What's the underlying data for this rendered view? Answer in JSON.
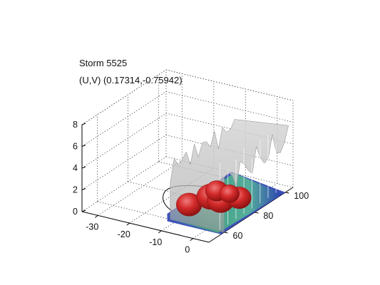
{
  "chart_data": {
    "type": "surface3d",
    "title": "Storm 5525",
    "subtitle": "(U,V) (0.17314,-0.75942)",
    "xlabel": "",
    "ylabel": "",
    "zlabel": "",
    "x_ticks": [
      -30,
      -20,
      -10,
      0
    ],
    "y_ticks": [
      60,
      80,
      100
    ],
    "z_ticks": [
      0,
      2,
      4,
      6,
      8
    ],
    "xlim": [
      -35,
      5
    ],
    "ylim": [
      50,
      105
    ],
    "zlim": [
      0,
      8
    ],
    "grid": true,
    "layers": [
      {
        "name": "",
        "color": "#a8a8a8",
        "shape": "tall translucent gray isosurface",
        "x_range": [
          -12,
          5
        ],
        "y_range": [
          60,
          102
        ],
        "z_range": [
          0,
          6.1
        ]
      },
      {
        "name": "",
        "color": "#cc2222",
        "shape": "red core blobs",
        "x_range": [
          -10,
          3
        ],
        "y_range": [
          58,
          82
        ],
        "z_range": [
          0,
          2.3
        ]
      },
      {
        "name": "",
        "color": "#3a9f7a",
        "shape": "teal/green base",
        "x_range": [
          -12,
          5
        ],
        "y_range": [
          58,
          100
        ],
        "z_range": [
          0,
          0.7
        ]
      },
      {
        "name": "",
        "color": "#2a3fb0",
        "shape": "blue edge",
        "x_range": [
          -12,
          5
        ],
        "y_range": [
          58,
          100
        ],
        "z_range": [
          0,
          0.4
        ]
      }
    ],
    "track": {
      "color": "#000000",
      "description": "storm track curve near base",
      "x": [
        -1,
        -12,
        -25,
        -20,
        -8,
        -2
      ],
      "y": [
        95,
        92,
        85,
        70,
        62,
        60
      ],
      "z": [
        0,
        0,
        0,
        0,
        0,
        0
      ]
    }
  }
}
